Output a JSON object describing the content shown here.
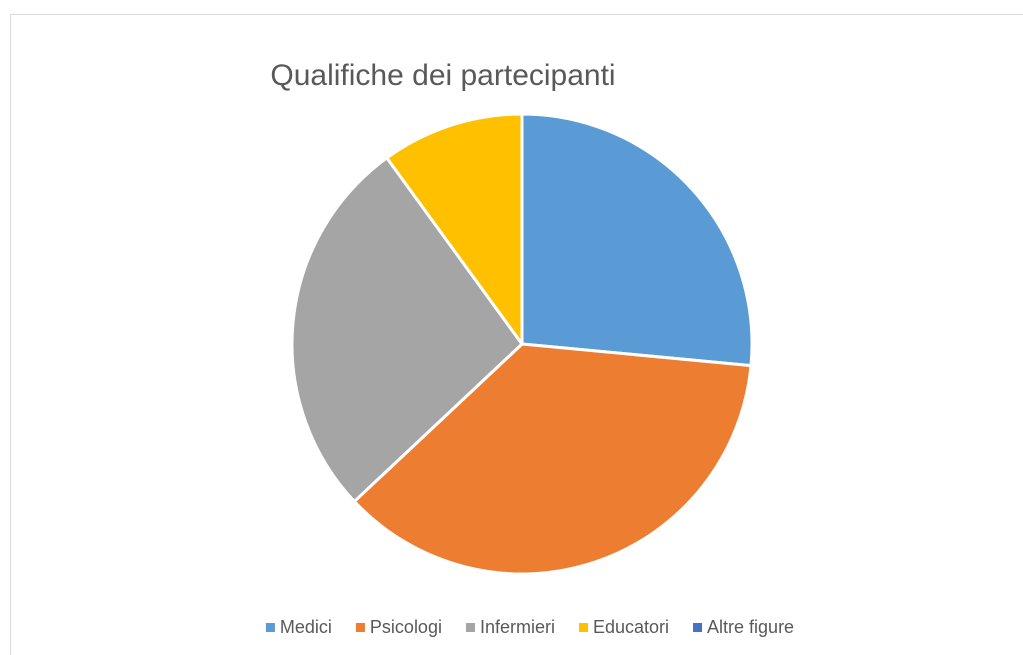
{
  "chart_data": {
    "type": "pie",
    "title": "Qualifiche dei partecipanti",
    "categories": [
      "Medici",
      "Psicologi",
      "Infermieri",
      "Educatori",
      "Altre figure"
    ],
    "values": [
      26.5,
      36.5,
      27,
      10,
      0
    ],
    "colors": [
      "#5b9bd5",
      "#ed7d31",
      "#a5a5a5",
      "#ffc000",
      "#4472c4"
    ],
    "legend": "bottom"
  }
}
